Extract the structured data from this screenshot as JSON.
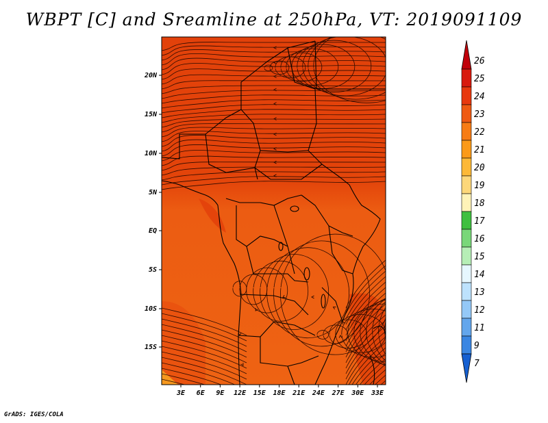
{
  "title": "WBPT [C] and Sreamline at 250hPa, VT: 2019091109",
  "footer": "GrADS: IGES/COLA",
  "map": {
    "lat_labels": [
      "20N",
      "15N",
      "10N",
      "5N",
      "EQ",
      "5S",
      "10S",
      "15S"
    ],
    "lon_labels": [
      "3E",
      "6E",
      "9E",
      "12E",
      "15E",
      "18E",
      "21E",
      "24E",
      "27E",
      "30E",
      "33E"
    ],
    "dominant_fill": "#e8500f",
    "north_fill": "#e2430a",
    "south_fill": "#ee6414",
    "coast_color": "#000000",
    "streamline_color": "#2a0a00"
  },
  "colorbar": {
    "levels": [
      "26",
      "25",
      "24",
      "23",
      "22",
      "21",
      "20",
      "19",
      "18",
      "17",
      "16",
      "15",
      "14",
      "13",
      "12",
      "11",
      "9",
      "7"
    ],
    "colors": [
      "#c0000a",
      "#d81a0e",
      "#e8380e",
      "#ef5a12",
      "#f77c14",
      "#fb9a18",
      "#fcb837",
      "#fdd77a",
      "#fff3b8",
      "#3fbf3f",
      "#79d779",
      "#b6eeb6",
      "#e6f7ff",
      "#bde2fd",
      "#94c8f7",
      "#63a6ec",
      "#3a86e2",
      "#1660d1"
    ]
  }
}
